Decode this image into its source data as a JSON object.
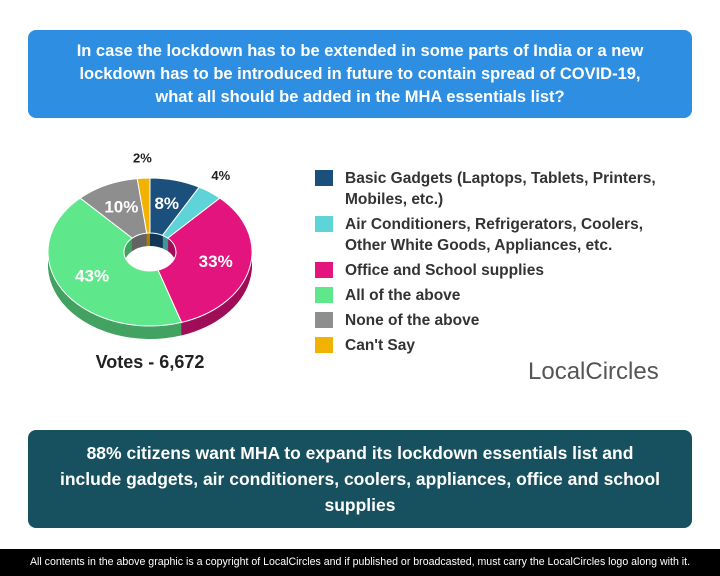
{
  "chart_data": {
    "type": "pie",
    "title": "In case the lockdown has to be extended in some parts of India or a new lockdown has to be introduced in future to contain spread of COVID-19, what all should be added in the MHA essentials list?",
    "categories": [
      "Basic Gadgets (Laptops, Tablets, Printers, Mobiles, etc.)",
      "Air Conditioners, Refrigerators, Coolers, Other White Goods, Appliances, etc.",
      "Office and School supplies",
      "All of the above",
      "None of the above",
      "Can't Say"
    ],
    "values": [
      8,
      4,
      33,
      43,
      10,
      2
    ],
    "value_labels": [
      "8%",
      "4%",
      "33%",
      "43%",
      "10%",
      "2%"
    ],
    "colors": [
      "#1b4f7c",
      "#5ed3d8",
      "#e3147d",
      "#5fe78c",
      "#8e8e8e",
      "#f2b200"
    ],
    "annotation": "Votes - 6,672"
  },
  "logo": "LocalCircles",
  "banner": "88% citizens want MHA to expand its lockdown essentials list and include gadgets, air conditioners, coolers, appliances, office and school supplies",
  "footer": "All contents in the above graphic is a copyright of LocalCircles and if published or broadcasted, must carry the LocalCircles logo along with it."
}
